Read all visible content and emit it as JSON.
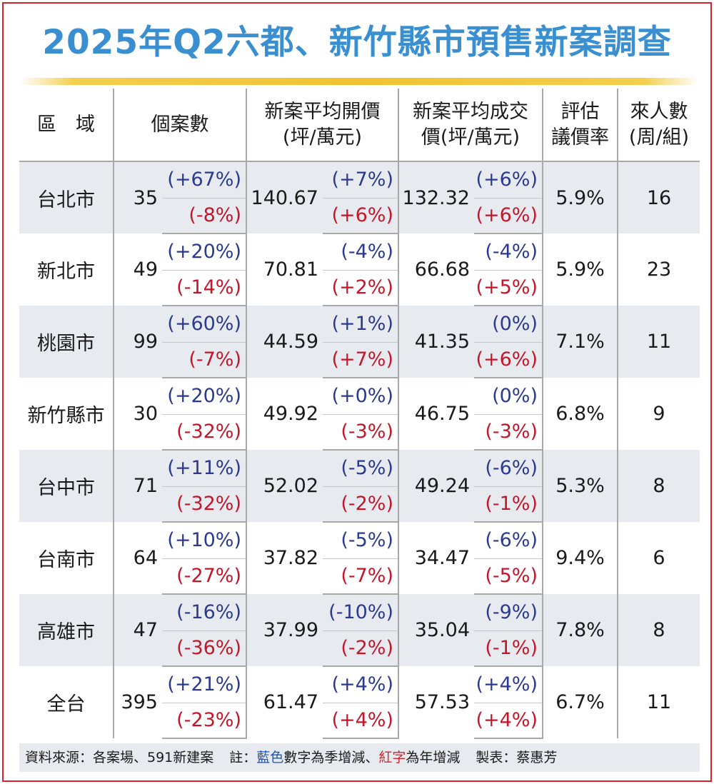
{
  "title": "2025年Q2六都、新竹縣市預售新案調查",
  "header": {
    "area": "區　域",
    "cases": "個案數",
    "open_price_1": "新案平均開價",
    "open_price_2": "(坪/萬元)",
    "deal_price_1": "新案平均成交",
    "deal_price_2": "價(坪/萬元)",
    "rate_1": "評估",
    "rate_2": "議價率",
    "visitors_1": "來人數",
    "visitors_2": "(周/組)"
  },
  "rows": [
    {
      "area": "台北市",
      "cases": "35",
      "cases_q": "(+67%)",
      "cases_y": "(-8%)",
      "open": "140.67",
      "open_q": "(+7%)",
      "open_y": "(+6%)",
      "deal": "132.32",
      "deal_q": "(+6%)",
      "deal_y": "(+6%)",
      "rate": "5.9%",
      "visitors": "16"
    },
    {
      "area": "新北市",
      "cases": "49",
      "cases_q": "(+20%)",
      "cases_y": "(-14%)",
      "open": "70.81",
      "open_q": "(-4%)",
      "open_y": "(+2%)",
      "deal": "66.68",
      "deal_q": "(-4%)",
      "deal_y": "(+5%)",
      "rate": "5.9%",
      "visitors": "23"
    },
    {
      "area": "桃園市",
      "cases": "99",
      "cases_q": "(+60%)",
      "cases_y": "(-7%)",
      "open": "44.59",
      "open_q": "(+1%)",
      "open_y": "(+7%)",
      "deal": "41.35",
      "deal_q": "(0%)",
      "deal_y": "(+6%)",
      "rate": "7.1%",
      "visitors": "11"
    },
    {
      "area": "新竹縣市",
      "cases": "30",
      "cases_q": "(+20%)",
      "cases_y": "(-32%)",
      "open": "49.92",
      "open_q": "(+0%)",
      "open_y": "(-3%)",
      "deal": "46.75",
      "deal_q": "(0%)",
      "deal_y": "(-3%)",
      "rate": "6.8%",
      "visitors": "9"
    },
    {
      "area": "台中市",
      "cases": "71",
      "cases_q": "(+11%)",
      "cases_y": "(-32%)",
      "open": "52.02",
      "open_q": "(-5%)",
      "open_y": "(-2%)",
      "deal": "49.24",
      "deal_q": "(-6%)",
      "deal_y": "(-1%)",
      "rate": "5.3%",
      "visitors": "8"
    },
    {
      "area": "台南市",
      "cases": "64",
      "cases_q": "(+10%)",
      "cases_y": "(-27%)",
      "open": "37.82",
      "open_q": "(-5%)",
      "open_y": "(-7%)",
      "deal": "34.47",
      "deal_q": "(-6%)",
      "deal_y": "(-5%)",
      "rate": "9.4%",
      "visitors": "6"
    },
    {
      "area": "高雄市",
      "cases": "47",
      "cases_q": "(-16%)",
      "cases_y": "(-36%)",
      "open": "37.99",
      "open_q": "(-10%)",
      "open_y": "(-2%)",
      "deal": "35.04",
      "deal_q": "(-9%)",
      "deal_y": "(-1%)",
      "rate": "7.8%",
      "visitors": "8"
    },
    {
      "area": "全台",
      "cases": "395",
      "cases_q": "(+21%)",
      "cases_y": "(-23%)",
      "open": "61.47",
      "open_q": "(+4%)",
      "open_y": "(+4%)",
      "deal": "57.53",
      "deal_q": "(+4%)",
      "deal_y": "(+4%)",
      "rate": "6.7%",
      "visitors": "11"
    }
  ],
  "footer": {
    "source": "資料來源：各案場、591新建案",
    "note_prefix": "註：",
    "note_blue": "藍色",
    "note_mid": "數字為季增減、",
    "note_red": "紅字",
    "note_end": "為年增減",
    "credit": "製表：蔡惠芳"
  },
  "colors": {
    "title": "#3a8fd1",
    "quarter_change": "#2b3a8f",
    "year_change": "#c4162a",
    "border": "#d8232a",
    "row_shade": "#e7ebf0",
    "rule": "#f1c232"
  }
}
